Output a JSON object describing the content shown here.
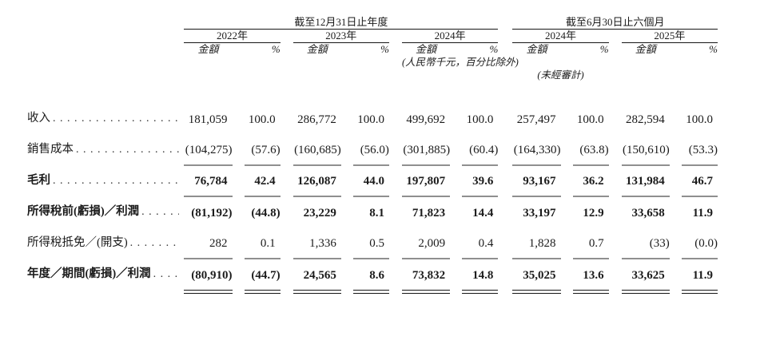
{
  "colors": {
    "text": "#1b1b1b",
    "rule_dark": "#161616",
    "rule_gray": "#8f8f8f"
  },
  "table": {
    "sections": [
      {
        "title": "截至12月31日止年度",
        "years": [
          "2022年",
          "2023年",
          "2024年"
        ]
      },
      {
        "title": "截至6月30日止六個月",
        "years": [
          "2024年",
          "2025年"
        ]
      }
    ],
    "col_headers": {
      "amount": "金額",
      "percent": "%"
    },
    "notes": {
      "units": "(人民幣千元，百分比除外)",
      "unaudited": "(未經審計)"
    },
    "rows": [
      {
        "label": "收入",
        "bold": false,
        "rule": "none",
        "values": [
          "181,059",
          "100.0",
          "286,772",
          "100.0",
          "499,692",
          "100.0",
          "257,497",
          "100.0",
          "282,594",
          "100.0"
        ]
      },
      {
        "label": "銷售成本",
        "bold": false,
        "rule": "single",
        "values": [
          "(104,275)",
          "(57.6)",
          "(160,685)",
          "(56.0)",
          "(301,885)",
          "(60.4)",
          "(164,330)",
          "(63.8)",
          "(150,610)",
          "(53.3)"
        ]
      },
      {
        "label": "毛利",
        "bold": true,
        "rule": "single",
        "values": [
          "76,784",
          "42.4",
          "126,087",
          "44.0",
          "197,807",
          "39.6",
          "93,167",
          "36.2",
          "131,984",
          "46.7"
        ]
      },
      {
        "label": "所得稅前(虧損)／利潤",
        "bold": true,
        "rule": "none",
        "values": [
          "(81,192)",
          "(44.8)",
          "23,229",
          "8.1",
          "71,823",
          "14.4",
          "33,197",
          "12.9",
          "33,658",
          "11.9"
        ]
      },
      {
        "label": "所得稅抵免／(開支)",
        "bold": false,
        "rule": "single",
        "values": [
          "282",
          "0.1",
          "1,336",
          "0.5",
          "2,009",
          "0.4",
          "1,828",
          "0.7",
          "(33)",
          "(0.0)"
        ]
      },
      {
        "label": "年度／期間(虧損)／利潤",
        "bold": true,
        "rule": "double",
        "values": [
          "(80,910)",
          "(44.7)",
          "24,565",
          "8.6",
          "73,832",
          "14.8",
          "35,025",
          "13.6",
          "33,625",
          "11.9"
        ]
      }
    ]
  }
}
